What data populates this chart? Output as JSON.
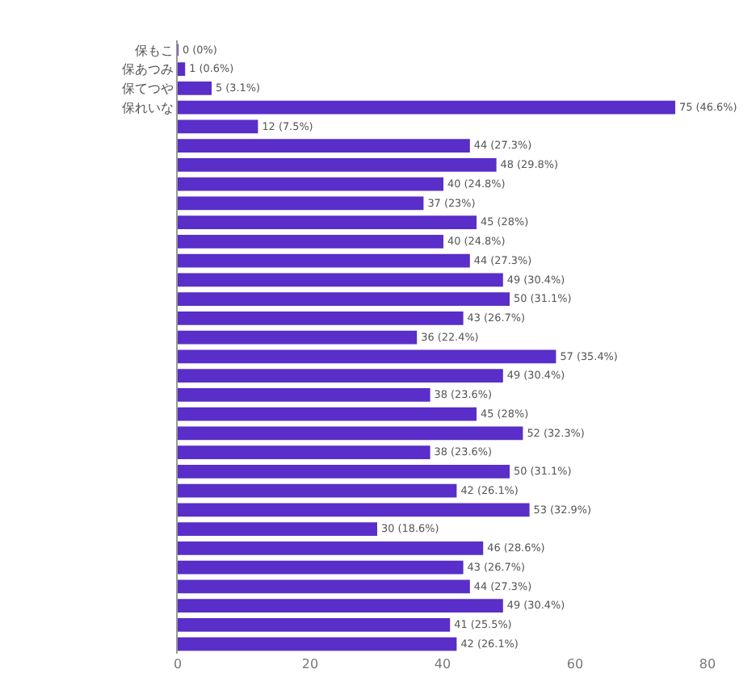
{
  "chart_data": {
    "type": "bar",
    "orientation": "horizontal",
    "categories": [
      "保もこ",
      "保あつみ",
      "保てつや",
      "保れいな",
      null,
      null,
      null,
      null,
      null,
      null,
      null,
      null,
      null,
      null,
      null,
      null,
      null,
      null,
      null,
      null,
      null,
      null,
      null,
      null,
      null,
      null,
      null,
      null,
      null,
      null,
      null,
      null
    ],
    "values": [
      0,
      1,
      5,
      75,
      12,
      44,
      48,
      40,
      37,
      45,
      40,
      44,
      49,
      50,
      43,
      36,
      57,
      49,
      38,
      45,
      52,
      38,
      50,
      42,
      53,
      30,
      46,
      43,
      44,
      49,
      41,
      42
    ],
    "value_labels": [
      "0 (0%)",
      "1 (0.6%)",
      "5 (3.1%)",
      "75 (46.6%)",
      "12 (7.5%)",
      "44 (27.3%)",
      "48 (29.8%)",
      "40 (24.8%)",
      "37 (23%)",
      "45 (28%)",
      "40 (24.8%)",
      "44 (27.3%)",
      "49 (30.4%)",
      "50 (31.1%)",
      "43 (26.7%)",
      "36 (22.4%)",
      "57 (35.4%)",
      "49 (30.4%)",
      "38 (23.6%)",
      "45 (28%)",
      "52 (32.3%)",
      "38 (23.6%)",
      "50 (31.1%)",
      "42 (26.1%)",
      "53 (32.9%)",
      "30 (18.6%)",
      "46 (28.6%)",
      "43 (26.7%)",
      "44 (27.3%)",
      "49 (30.4%)",
      "41 (25.5%)",
      "42 (26.1%)"
    ],
    "color": "#5a2ec8",
    "xlim": [
      0,
      80
    ],
    "xticks": [
      0,
      20,
      40,
      60,
      80
    ],
    "grid": false,
    "legend": false
  }
}
